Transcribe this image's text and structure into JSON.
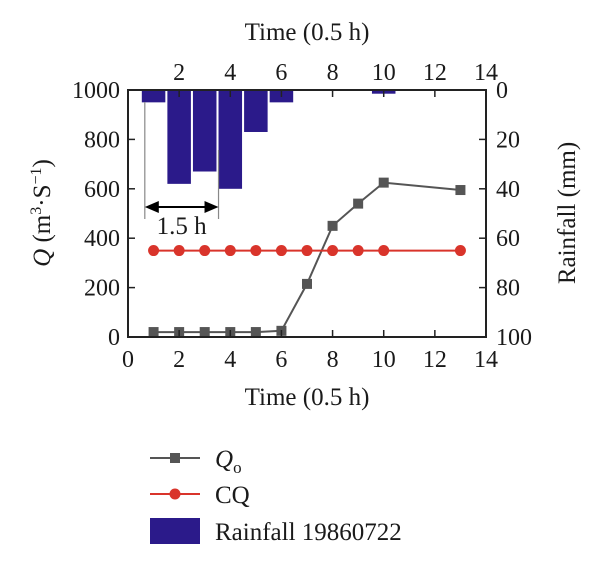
{
  "chart_data": {
    "type": "line",
    "x_bottom": {
      "label": "Time (0.5 h)",
      "range": [
        0,
        14
      ],
      "ticks": [
        0,
        2,
        4,
        6,
        8,
        10,
        12,
        14
      ]
    },
    "x_top": {
      "label": "Time (0.5 h)",
      "range": [
        0,
        14
      ],
      "ticks": [
        2,
        4,
        6,
        8,
        10,
        12,
        14
      ]
    },
    "y_left": {
      "label_italic": "Q",
      "label_units": "(m³·S⁻¹)",
      "range": [
        0,
        1000
      ],
      "ticks": [
        0,
        200,
        400,
        600,
        800,
        1000
      ]
    },
    "y_right": {
      "label": "Rainfall (mm)",
      "range": [
        0,
        100
      ],
      "inverted": true,
      "ticks": [
        0,
        20,
        40,
        60,
        80,
        100
      ]
    },
    "series": [
      {
        "name": "Q",
        "name_subscript": "o",
        "kind": "line",
        "marker": "square",
        "color": "#555555",
        "x": [
          1,
          2,
          3,
          4,
          5,
          6,
          7,
          8,
          9,
          10,
          13
        ],
        "y": [
          20,
          20,
          20,
          20,
          20,
          25,
          215,
          450,
          540,
          625,
          595
        ]
      },
      {
        "name": "CQ",
        "kind": "line",
        "marker": "circle",
        "color": "#d9342b",
        "x": [
          1,
          2,
          3,
          4,
          5,
          6,
          7,
          8,
          9,
          10,
          13
        ],
        "y": [
          350,
          350,
          350,
          350,
          350,
          350,
          350,
          350,
          350,
          350,
          350
        ]
      },
      {
        "name": "Rainfall 19860722",
        "kind": "bar",
        "axis": "right",
        "color": "#2b1a8a",
        "x": [
          1,
          2,
          3,
          4,
          5,
          6,
          10
        ],
        "y": [
          5,
          38,
          33,
          40,
          17,
          5,
          1.5
        ]
      }
    ],
    "annotation": {
      "text": "1.5 h",
      "from_x": 1,
      "to_x": 4
    },
    "legend_position": "bottom"
  }
}
